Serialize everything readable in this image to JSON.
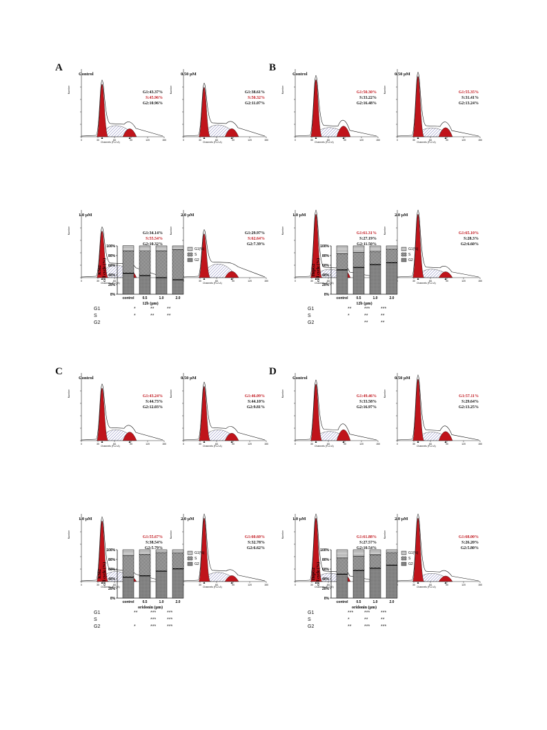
{
  "panels": [
    {
      "letter": "A",
      "hists": [
        {
          "cond": "Control",
          "g1": "G1:43.37%",
          "s": "S:45.96%",
          "g2": "G2:10.96%",
          "red": "s"
        },
        {
          "cond": "0.50 μM",
          "g1": "G1:38.61%",
          "s": "S:50.32%",
          "g2": "G2:11.07%",
          "red": "s"
        },
        {
          "cond": "1.0 μM",
          "g1": "G1:34.14%",
          "s": "S:55.54%",
          "g2": "G2:10.32%",
          "red": "s"
        },
        {
          "cond": "2.0 μM",
          "g1": "G1:29.97%",
          "s": "S:62.64%",
          "g2": "G2:7.39%",
          "red": "s"
        }
      ],
      "bar": {
        "ylabel": "K562",
        "ylabel2": "cell cycle (%)",
        "xlabel": "12b (μm)",
        "categories": [
          "control",
          "0.5",
          "1.0",
          "2.0"
        ],
        "g1": [
          43.37,
          38.61,
          34.14,
          29.97
        ],
        "s": [
          45.96,
          50.32,
          55.54,
          62.64
        ],
        "g2": [
          10.96,
          11.07,
          10.32,
          7.39
        ],
        "legend": [
          "G1(%)",
          "S",
          "G2"
        ],
        "sig": {
          "rows": [
            "G1",
            "S",
            "G2"
          ],
          "vals": [
            [
              "",
              "*",
              "**",
              "**"
            ],
            [
              "",
              "*",
              "**",
              "**"
            ],
            [
              "",
              "",
              "",
              ""
            ]
          ]
        }
      }
    },
    {
      "letter": "B",
      "hists": [
        {
          "cond": "Control",
          "g1": "G1:50.30%",
          "s": "S:33.22%",
          "g2": "G2:16.48%",
          "red": "g1"
        },
        {
          "cond": "0.50 μM",
          "g1": "G1:55.35%",
          "s": "S:31.41%",
          "g2": "G2:13.24%",
          "red": "g1"
        },
        {
          "cond": "1.0 μM",
          "g1": "G1:61.31%",
          "s": "S:27.19%",
          "g2": "G2:11.50%",
          "red": "g1"
        },
        {
          "cond": "2.0 μM",
          "g1": "G1:65.10%",
          "s": "S:28.3%",
          "g2": "G2:6.60%",
          "red": "g1"
        }
      ],
      "bar": {
        "ylabel": "HepG2",
        "ylabel2": "cell cycle (%)",
        "xlabel": "12b (μm)",
        "categories": [
          "control",
          "0.5",
          "1.0",
          "2.0"
        ],
        "g1": [
          50.3,
          55.35,
          61.31,
          65.1
        ],
        "s": [
          33.22,
          31.41,
          27.19,
          28.3
        ],
        "g2": [
          16.48,
          13.24,
          11.5,
          6.6
        ],
        "legend": [
          "G1(%)",
          "S",
          "G2"
        ],
        "sig": {
          "rows": [
            "G1",
            "S",
            "G2"
          ],
          "vals": [
            [
              "",
              "**",
              "***",
              "***"
            ],
            [
              "",
              "*",
              "**",
              "**"
            ],
            [
              "",
              "",
              "**",
              "**"
            ]
          ]
        }
      }
    },
    {
      "letter": "C",
      "hists": [
        {
          "cond": "Control",
          "g1": "G1:43.24%",
          "s": "S:44.73%",
          "g2": "G2:12.03%",
          "red": "g1"
        },
        {
          "cond": "0.50 μM",
          "g1": "G1:46.09%",
          "s": "S:44.10%",
          "g2": "G2:9.81%",
          "red": "g1"
        },
        {
          "cond": "1.0 μM",
          "g1": "G1:55.67%",
          "s": "S:38.54%",
          "g2": "G2:5.79%",
          "red": "g1"
        },
        {
          "cond": "2.0 μM",
          "g1": "G1:60.60%",
          "s": "S:32.78%",
          "g2": "G2:6.62%",
          "red": "g1"
        }
      ],
      "bar": {
        "ylabel": "K562",
        "ylabel2": "cell cycle (%)",
        "xlabel": "oridonin (μm)",
        "categories": [
          "control",
          "0.5",
          "1.0",
          "2.0"
        ],
        "g1": [
          43.24,
          46.09,
          55.67,
          60.6
        ],
        "s": [
          44.73,
          44.1,
          38.54,
          32.78
        ],
        "g2": [
          12.03,
          9.81,
          5.79,
          6.62
        ],
        "legend": [
          "G1(%)",
          "S",
          "G2"
        ],
        "sig": {
          "rows": [
            "G1",
            "S",
            "G2"
          ],
          "vals": [
            [
              "",
              "**",
              "***",
              "***"
            ],
            [
              "",
              "",
              "***",
              "***"
            ],
            [
              "",
              "*",
              "***",
              "***"
            ]
          ]
        }
      }
    },
    {
      "letter": "D",
      "hists": [
        {
          "cond": "Control",
          "g1": "G1:49.46%",
          "s": "S:33.58%",
          "g2": "G2:16.97%",
          "red": "g1"
        },
        {
          "cond": "0.50 μM",
          "g1": "G1:57.11%",
          "s": "S:29.64%",
          "g2": "G2:13.25%",
          "red": "g1"
        },
        {
          "cond": "1.0 μM",
          "g1": "G1:61.88%",
          "s": "S:27.57%",
          "g2": "G2:10.54%",
          "red": "g1"
        },
        {
          "cond": "2.0 μM",
          "g1": "G1:68.00%",
          "s": "S:26.20%",
          "g2": "G2:5.80%",
          "red": "g1"
        }
      ],
      "bar": {
        "ylabel": "HepG2",
        "ylabel2": "cell cycle (%)",
        "xlabel": "oridonin (μm)",
        "categories": [
          "control",
          "0.5",
          "1.0",
          "2.0"
        ],
        "g1": [
          49.46,
          57.11,
          61.88,
          68.0
        ],
        "s": [
          33.58,
          29.64,
          27.57,
          26.2
        ],
        "g2": [
          16.97,
          13.25,
          10.54,
          5.8
        ],
        "legend": [
          "G1(%)",
          "S",
          "G2"
        ],
        "sig": {
          "rows": [
            "G1",
            "S",
            "G2"
          ],
          "vals": [
            [
              "",
              "***",
              "***",
              "***"
            ],
            [
              "",
              "*",
              "**",
              "**"
            ],
            [
              "",
              "**",
              "***",
              "***"
            ]
          ]
        }
      }
    }
  ],
  "hist_axis": {
    "xlabel": "Channels (FL2-A)",
    "ylabel": "Number",
    "xticks": [
      "0",
      "30",
      "60",
      "90",
      "120",
      "150"
    ]
  },
  "bar_axis": {
    "yticks": [
      "0%",
      "20%",
      "40%",
      "60%",
      "80%",
      "100%"
    ]
  },
  "chart_data": [
    {
      "type": "bar",
      "title": "",
      "xlabel": "12b (μm)",
      "ylabel": "K562 cell cycle (%)",
      "categories": [
        "control",
        "0.5",
        "1.0",
        "2.0"
      ],
      "series": [
        {
          "name": "G1(%)",
          "values": [
            43.37,
            38.61,
            34.14,
            29.97
          ]
        },
        {
          "name": "S",
          "values": [
            45.96,
            50.32,
            55.54,
            62.64
          ]
        },
        {
          "name": "G2",
          "values": [
            10.96,
            11.07,
            10.32,
            7.39
          ]
        }
      ],
      "ylim": [
        0,
        100
      ]
    },
    {
      "type": "bar",
      "title": "",
      "xlabel": "12b (μm)",
      "ylabel": "HepG2 cell cycle (%)",
      "categories": [
        "control",
        "0.5",
        "1.0",
        "2.0"
      ],
      "series": [
        {
          "name": "G1(%)",
          "values": [
            50.3,
            55.35,
            61.31,
            65.1
          ]
        },
        {
          "name": "S",
          "values": [
            33.22,
            31.41,
            27.19,
            28.3
          ]
        },
        {
          "name": "G2",
          "values": [
            16.48,
            13.24,
            11.5,
            6.6
          ]
        }
      ],
      "ylim": [
        0,
        100
      ]
    },
    {
      "type": "bar",
      "title": "",
      "xlabel": "oridonin (μm)",
      "ylabel": "K562 cell cycle (%)",
      "categories": [
        "control",
        "0.5",
        "1.0",
        "2.0"
      ],
      "series": [
        {
          "name": "G1(%)",
          "values": [
            43.24,
            46.09,
            55.67,
            60.6
          ]
        },
        {
          "name": "S",
          "values": [
            44.73,
            44.1,
            38.54,
            32.78
          ]
        },
        {
          "name": "G2",
          "values": [
            12.03,
            9.81,
            5.79,
            6.62
          ]
        }
      ],
      "ylim": [
        0,
        100
      ]
    },
    {
      "type": "bar",
      "title": "",
      "xlabel": "oridonin (μm)",
      "ylabel": "HepG2 cell cycle (%)",
      "categories": [
        "control",
        "0.5",
        "1.0",
        "2.0"
      ],
      "series": [
        {
          "name": "G1(%)",
          "values": [
            49.46,
            57.11,
            61.88,
            68.0
          ]
        },
        {
          "name": "S",
          "values": [
            33.58,
            29.64,
            27.57,
            26.2
          ]
        },
        {
          "name": "G2",
          "values": [
            16.97,
            13.25,
            10.54,
            5.8
          ]
        }
      ],
      "ylim": [
        0,
        100
      ]
    }
  ]
}
